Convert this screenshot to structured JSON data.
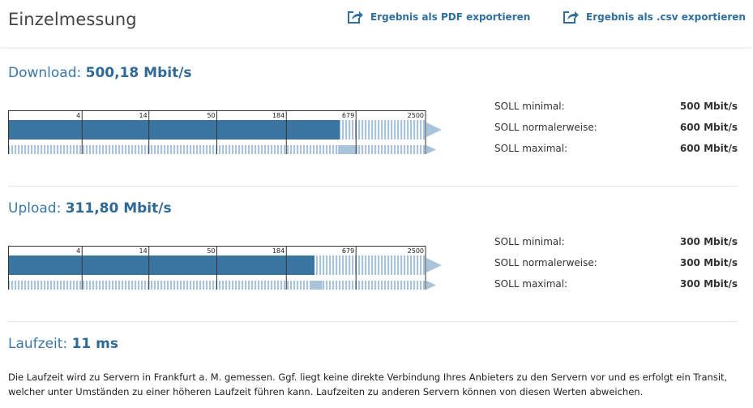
{
  "header": {
    "title": "Einzelmessung",
    "export_pdf": "Ergebnis als PDF exportieren",
    "export_csv": "Ergebnis als .csv exportieren"
  },
  "colors": {
    "accent": "#2f6f9e",
    "bar": "#3a74a1",
    "stripe": "#a9c4da"
  },
  "download": {
    "label": "Download: ",
    "value": "500,18 Mbit/s",
    "measured": 500.18,
    "soll": [
      {
        "label": "SOLL minimal:",
        "value": "500 Mbit/s",
        "num": 500
      },
      {
        "label": "SOLL normalerweise:",
        "value": "600 Mbit/s",
        "num": 600
      },
      {
        "label": "SOLL maximal:",
        "value": "600 Mbit/s",
        "num": 600
      }
    ]
  },
  "upload": {
    "label": "Upload: ",
    "value": "311,80 Mbit/s",
    "measured": 311.8,
    "soll": [
      {
        "label": "SOLL minimal:",
        "value": "300 Mbit/s",
        "num": 300
      },
      {
        "label": "SOLL normalerweise:",
        "value": "300 Mbit/s",
        "num": 300
      },
      {
        "label": "SOLL maximal:",
        "value": "300 Mbit/s",
        "num": 300
      }
    ]
  },
  "scale": {
    "ticks": [
      "4",
      "14",
      "50",
      "184",
      "679",
      "2500"
    ],
    "tick_values": [
      4,
      14,
      50,
      184,
      679,
      2500
    ]
  },
  "latency": {
    "label": "Laufzeit: ",
    "value": "11 ms",
    "note": "Die Laufzeit wird zu Servern in Frankfurt a. M. gemessen. Ggf. liegt keine direkte Verbindung Ihres Anbieters zu den Servern vor und es erfolgt ein Transit, welcher unter Umständen zu einer höheren Laufzeit führen kann. Laufzeiten zu anderen Servern können von diesen Werten abweichen."
  }
}
